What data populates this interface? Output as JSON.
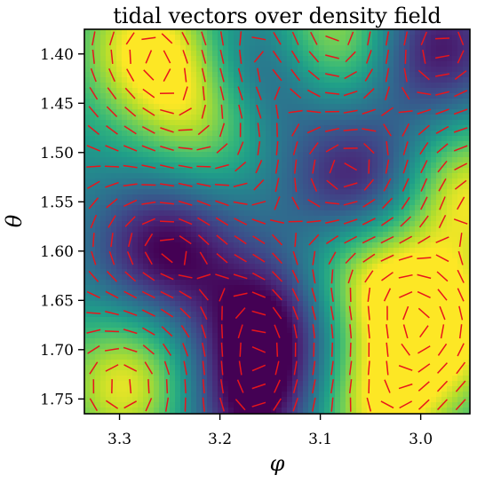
{
  "chart_data": {
    "type": "heatmap",
    "title": "tidal vectors over density field",
    "xlabel": "φ",
    "ylabel": "θ",
    "xlim": [
      3.335,
      2.951
    ],
    "ylim": [
      1.765,
      1.375
    ],
    "x_inverted": true,
    "y_inverted": true,
    "xticks": [
      3.3,
      3.2,
      3.1,
      3.0
    ],
    "xtick_labels": [
      "3.3",
      "3.2",
      "3.1",
      "3.0"
    ],
    "yticks": [
      1.4,
      1.45,
      1.5,
      1.55,
      1.6,
      1.65,
      1.7,
      1.75
    ],
    "ytick_labels": [
      "1.40",
      "1.45",
      "1.50",
      "1.55",
      "1.60",
      "1.65",
      "1.70",
      "1.75"
    ],
    "colormap": "viridis",
    "vector_color": "#e8151b",
    "grid": false,
    "density_features": [
      {
        "phi": 3.272,
        "theta": 1.392,
        "level": "high"
      },
      {
        "phi": 3.085,
        "theta": 1.385,
        "level": "high"
      },
      {
        "phi": 3.21,
        "theta": 1.455,
        "level": "high"
      },
      {
        "phi": 2.958,
        "theta": 1.54,
        "level": "high"
      },
      {
        "phi": 3.05,
        "theta": 1.625,
        "level": "high"
      },
      {
        "phi": 3.042,
        "theta": 1.758,
        "level": "high"
      },
      {
        "phi": 3.29,
        "theta": 1.735,
        "level": "high"
      },
      {
        "phi": 2.975,
        "theta": 1.68,
        "level": "high"
      },
      {
        "phi": 3.162,
        "theta": 1.422,
        "level": "low"
      },
      {
        "phi": 2.99,
        "theta": 1.395,
        "level": "low"
      },
      {
        "phi": 3.255,
        "theta": 1.598,
        "level": "low"
      },
      {
        "phi": 3.06,
        "theta": 1.532,
        "level": "low"
      },
      {
        "phi": 3.168,
        "theta": 1.752,
        "level": "low"
      },
      {
        "phi": 3.15,
        "theta": 1.67,
        "level": "low"
      }
    ],
    "vectors": {
      "grid_cols": 21,
      "grid_rows": 21,
      "kind": "headless line segments"
    }
  }
}
